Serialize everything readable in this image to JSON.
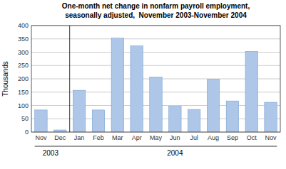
{
  "chart_data": {
    "type": "bar",
    "title": "One-month net change in nonfarm payroll employment,",
    "subtitle": "seasonally adjusted,  November 2003-November 2004",
    "categories": [
      "Nov",
      "Dec",
      "Jan",
      "Feb",
      "Mar",
      "Apr",
      "May",
      "Jun",
      "Jul",
      "Aug",
      "Sep",
      "Oct",
      "Nov"
    ],
    "values": [
      83,
      8,
      157,
      83,
      353,
      324,
      207,
      97,
      85,
      198,
      117,
      303,
      112
    ],
    "color": "#aec6e8",
    "ylabel": "Thousands",
    "ylim": [
      0,
      400
    ],
    "yticks": [
      0,
      50,
      100,
      150,
      200,
      250,
      300,
      350,
      400
    ],
    "grid": true,
    "annotations": [
      "2003",
      "2004"
    ]
  }
}
